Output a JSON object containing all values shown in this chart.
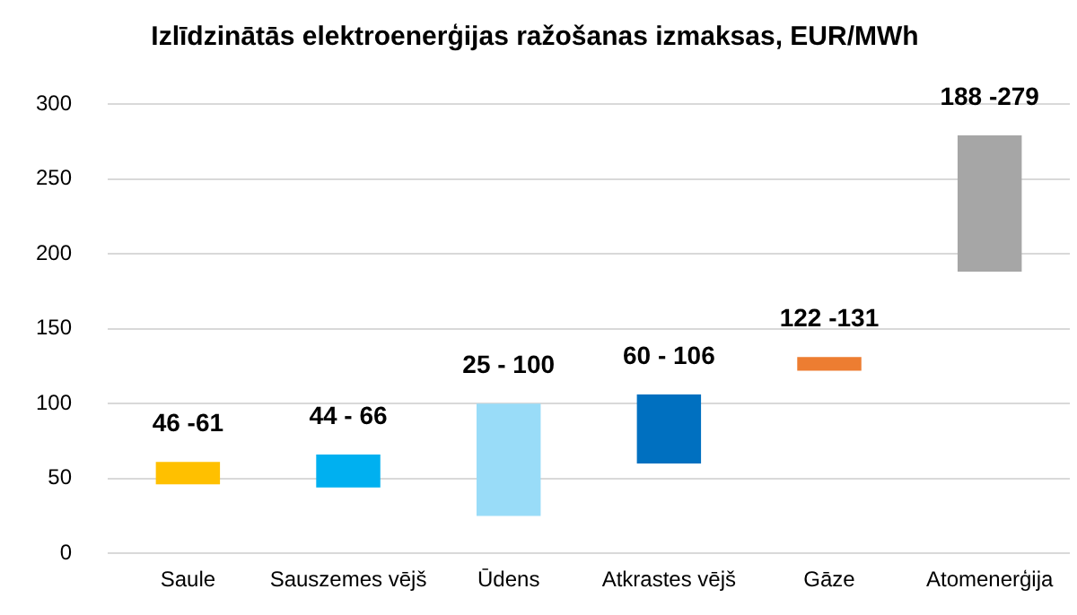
{
  "chart_data": {
    "type": "bar",
    "title": "Izlīdzinātās elektroenerģijas ražošanas izmaksas, EUR/MWh",
    "categories": [
      "Saule",
      "Sauszemes vējš",
      "Ūdens",
      "Atkrastes vējš",
      "Gāze",
      "Atomenerģija"
    ],
    "base": [
      46,
      44,
      25,
      60,
      122,
      188
    ],
    "values": [
      15,
      22,
      75,
      46,
      9,
      91
    ],
    "annotations": [
      {
        "text": "46 -61",
        "x": "Saule",
        "y": 61
      },
      {
        "text": "44 - 66",
        "x": "Sauszemes vējš",
        "y": 66
      },
      {
        "text": "25 - 100",
        "x": "Ūdens",
        "y": 100
      },
      {
        "text": "60 - 106",
        "x": "Atkrastes vējš",
        "y": 106
      },
      {
        "text": "122 -131",
        "x": "Gāze",
        "y": 131
      },
      {
        "text": "188 -279",
        "x": "Atomenerģija",
        "y": 279
      }
    ],
    "colors": [
      "#ffc000",
      "#00b0f0",
      "#99dcf8",
      "#0070c0",
      "#ed7d31",
      "#a6a6a6"
    ],
    "ylim": [
      0,
      300
    ],
    "yticks": [
      0,
      50,
      100,
      150,
      200,
      250,
      300
    ],
    "grid": "y"
  }
}
